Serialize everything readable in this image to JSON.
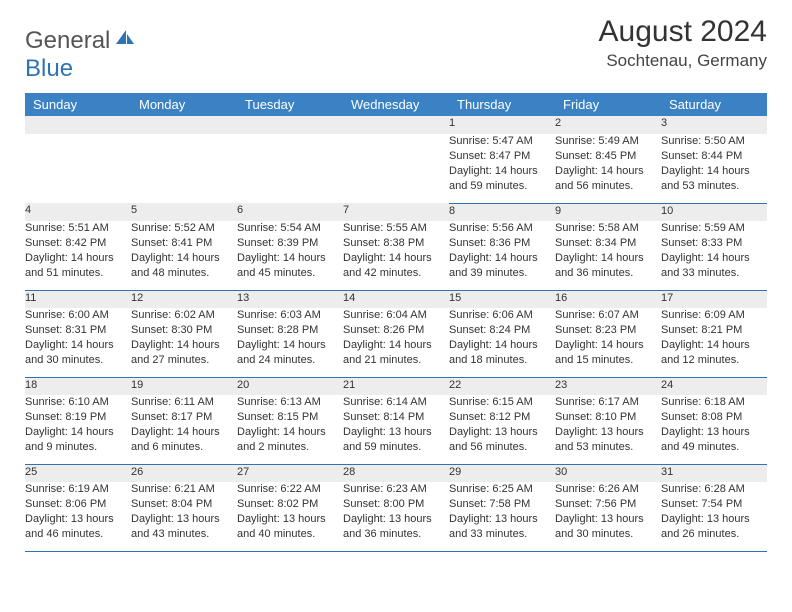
{
  "brand": {
    "general": "General",
    "blue": "Blue"
  },
  "title": "August 2024",
  "location": "Sochtenau, Germany",
  "weekdays": [
    "Sunday",
    "Monday",
    "Tuesday",
    "Wednesday",
    "Thursday",
    "Friday",
    "Saturday"
  ],
  "colors": {
    "header_bg": "#3a82c4",
    "sep": "#2e74b5",
    "daynum_bg": "#ededed"
  },
  "weeks": [
    [
      null,
      null,
      null,
      null,
      {
        "n": "1",
        "sr": "5:47 AM",
        "ss": "8:47 PM",
        "dl": "14 hours and 59 minutes."
      },
      {
        "n": "2",
        "sr": "5:49 AM",
        "ss": "8:45 PM",
        "dl": "14 hours and 56 minutes."
      },
      {
        "n": "3",
        "sr": "5:50 AM",
        "ss": "8:44 PM",
        "dl": "14 hours and 53 minutes."
      }
    ],
    [
      {
        "n": "4",
        "sr": "5:51 AM",
        "ss": "8:42 PM",
        "dl": "14 hours and 51 minutes."
      },
      {
        "n": "5",
        "sr": "5:52 AM",
        "ss": "8:41 PM",
        "dl": "14 hours and 48 minutes."
      },
      {
        "n": "6",
        "sr": "5:54 AM",
        "ss": "8:39 PM",
        "dl": "14 hours and 45 minutes."
      },
      {
        "n": "7",
        "sr": "5:55 AM",
        "ss": "8:38 PM",
        "dl": "14 hours and 42 minutes."
      },
      {
        "n": "8",
        "sr": "5:56 AM",
        "ss": "8:36 PM",
        "dl": "14 hours and 39 minutes."
      },
      {
        "n": "9",
        "sr": "5:58 AM",
        "ss": "8:34 PM",
        "dl": "14 hours and 36 minutes."
      },
      {
        "n": "10",
        "sr": "5:59 AM",
        "ss": "8:33 PM",
        "dl": "14 hours and 33 minutes."
      }
    ],
    [
      {
        "n": "11",
        "sr": "6:00 AM",
        "ss": "8:31 PM",
        "dl": "14 hours and 30 minutes."
      },
      {
        "n": "12",
        "sr": "6:02 AM",
        "ss": "8:30 PM",
        "dl": "14 hours and 27 minutes."
      },
      {
        "n": "13",
        "sr": "6:03 AM",
        "ss": "8:28 PM",
        "dl": "14 hours and 24 minutes."
      },
      {
        "n": "14",
        "sr": "6:04 AM",
        "ss": "8:26 PM",
        "dl": "14 hours and 21 minutes."
      },
      {
        "n": "15",
        "sr": "6:06 AM",
        "ss": "8:24 PM",
        "dl": "14 hours and 18 minutes."
      },
      {
        "n": "16",
        "sr": "6:07 AM",
        "ss": "8:23 PM",
        "dl": "14 hours and 15 minutes."
      },
      {
        "n": "17",
        "sr": "6:09 AM",
        "ss": "8:21 PM",
        "dl": "14 hours and 12 minutes."
      }
    ],
    [
      {
        "n": "18",
        "sr": "6:10 AM",
        "ss": "8:19 PM",
        "dl": "14 hours and 9 minutes."
      },
      {
        "n": "19",
        "sr": "6:11 AM",
        "ss": "8:17 PM",
        "dl": "14 hours and 6 minutes."
      },
      {
        "n": "20",
        "sr": "6:13 AM",
        "ss": "8:15 PM",
        "dl": "14 hours and 2 minutes."
      },
      {
        "n": "21",
        "sr": "6:14 AM",
        "ss": "8:14 PM",
        "dl": "13 hours and 59 minutes."
      },
      {
        "n": "22",
        "sr": "6:15 AM",
        "ss": "8:12 PM",
        "dl": "13 hours and 56 minutes."
      },
      {
        "n": "23",
        "sr": "6:17 AM",
        "ss": "8:10 PM",
        "dl": "13 hours and 53 minutes."
      },
      {
        "n": "24",
        "sr": "6:18 AM",
        "ss": "8:08 PM",
        "dl": "13 hours and 49 minutes."
      }
    ],
    [
      {
        "n": "25",
        "sr": "6:19 AM",
        "ss": "8:06 PM",
        "dl": "13 hours and 46 minutes."
      },
      {
        "n": "26",
        "sr": "6:21 AM",
        "ss": "8:04 PM",
        "dl": "13 hours and 43 minutes."
      },
      {
        "n": "27",
        "sr": "6:22 AM",
        "ss": "8:02 PM",
        "dl": "13 hours and 40 minutes."
      },
      {
        "n": "28",
        "sr": "6:23 AM",
        "ss": "8:00 PM",
        "dl": "13 hours and 36 minutes."
      },
      {
        "n": "29",
        "sr": "6:25 AM",
        "ss": "7:58 PM",
        "dl": "13 hours and 33 minutes."
      },
      {
        "n": "30",
        "sr": "6:26 AM",
        "ss": "7:56 PM",
        "dl": "13 hours and 30 minutes."
      },
      {
        "n": "31",
        "sr": "6:28 AM",
        "ss": "7:54 PM",
        "dl": "13 hours and 26 minutes."
      }
    ]
  ],
  "labels": {
    "sunrise": "Sunrise: ",
    "sunset": "Sunset: ",
    "daylight": "Daylight: "
  }
}
